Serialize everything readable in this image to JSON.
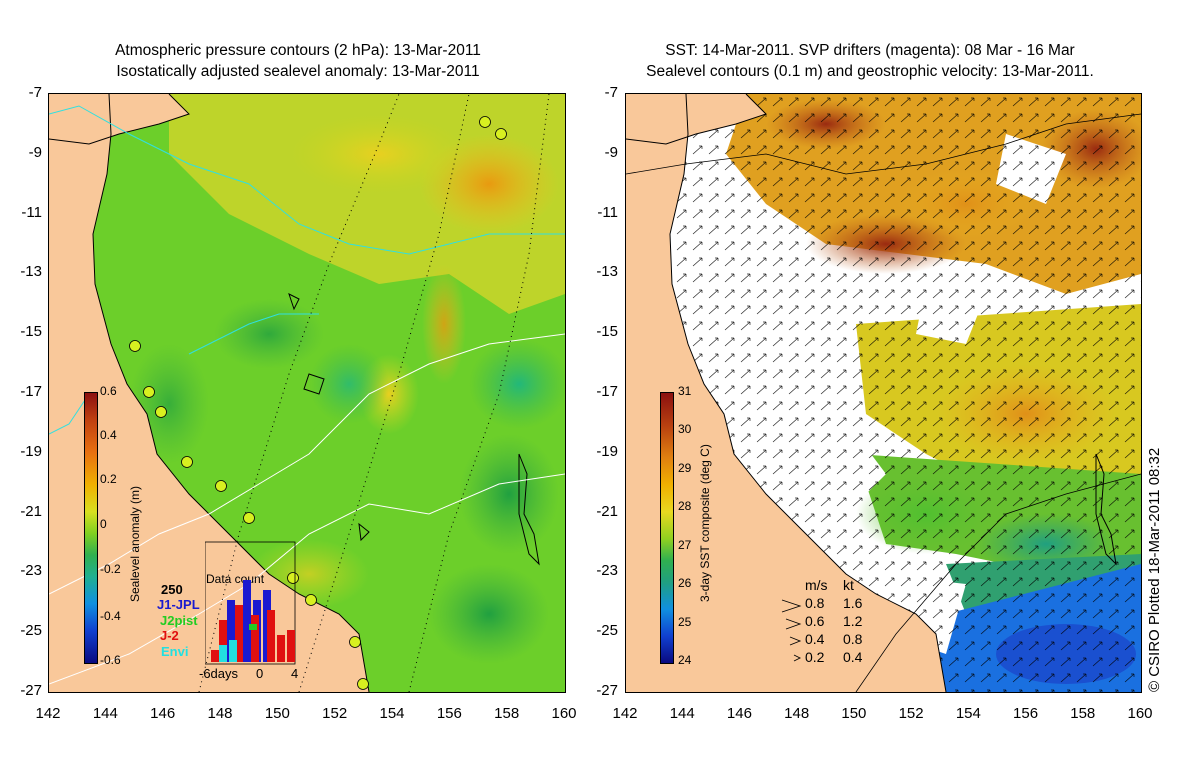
{
  "left_panel": {
    "title_line1": "Atmospheric pressure contours (2 hPa): 13-Mar-2011",
    "title_line2": "Isostatically adjusted sealevel anomaly: 13-Mar-2011",
    "colorbar": {
      "label": "Sealevel anomaly (m)",
      "ticks": [
        "0.6",
        "0.4",
        "0.2",
        "0",
        "-0.2",
        "-0.4",
        "-0.6"
      ]
    },
    "inset": {
      "title": "Data count",
      "ymax": "250",
      "missions": [
        {
          "name": "J1-JPL",
          "color": "#1a1ad0"
        },
        {
          "name": "J2pist",
          "color": "#22cc22"
        },
        {
          "name": "J-2",
          "color": "#e01010"
        },
        {
          "name": "Envi",
          "color": "#22e0e0"
        }
      ],
      "x_ticks": [
        "-6days",
        "0",
        "4"
      ]
    }
  },
  "right_panel": {
    "title_line1": "SST: 14-Mar-2011. SVP drifters (magenta): 08 Mar - 16 Mar",
    "title_line2": "Sealevel contours (0.1 m) and geostrophic velocity: 13-Mar-2011.",
    "colorbar": {
      "label": "3-day SST composite (deg C)",
      "ticks": [
        "31",
        "30",
        "29",
        "28",
        "27",
        "26",
        "25",
        "24"
      ]
    },
    "velocity_legend": {
      "header_ms": "m/s",
      "header_kt": "kt",
      "rows": [
        {
          "ms": "0.8",
          "kt": "1.6"
        },
        {
          "ms": "0.6",
          "kt": "1.2"
        },
        {
          "ms": "0.4",
          "kt": "0.8"
        },
        {
          "ms": "0.2",
          "kt": "0.4"
        }
      ]
    }
  },
  "axes": {
    "y_labels": [
      "-7",
      "-9",
      "-11",
      "-13",
      "-15",
      "-17",
      "-19",
      "-21",
      "-23",
      "-25",
      "-27"
    ],
    "x_labels": [
      "142",
      "144",
      "146",
      "148",
      "150",
      "152",
      "154",
      "156",
      "158",
      "160"
    ]
  },
  "credit": "© CSIRO Plotted 18-Mar-2011 08:32",
  "colors": {
    "land": "#f9c89a",
    "sla_low": "#1a9a2a",
    "sla_mid": "#7ed321",
    "sla_high": "#f0b400",
    "sst_warm": "#b8501a",
    "sst_mid": "#e8c81a",
    "sst_cool": "#2a6ad8"
  }
}
